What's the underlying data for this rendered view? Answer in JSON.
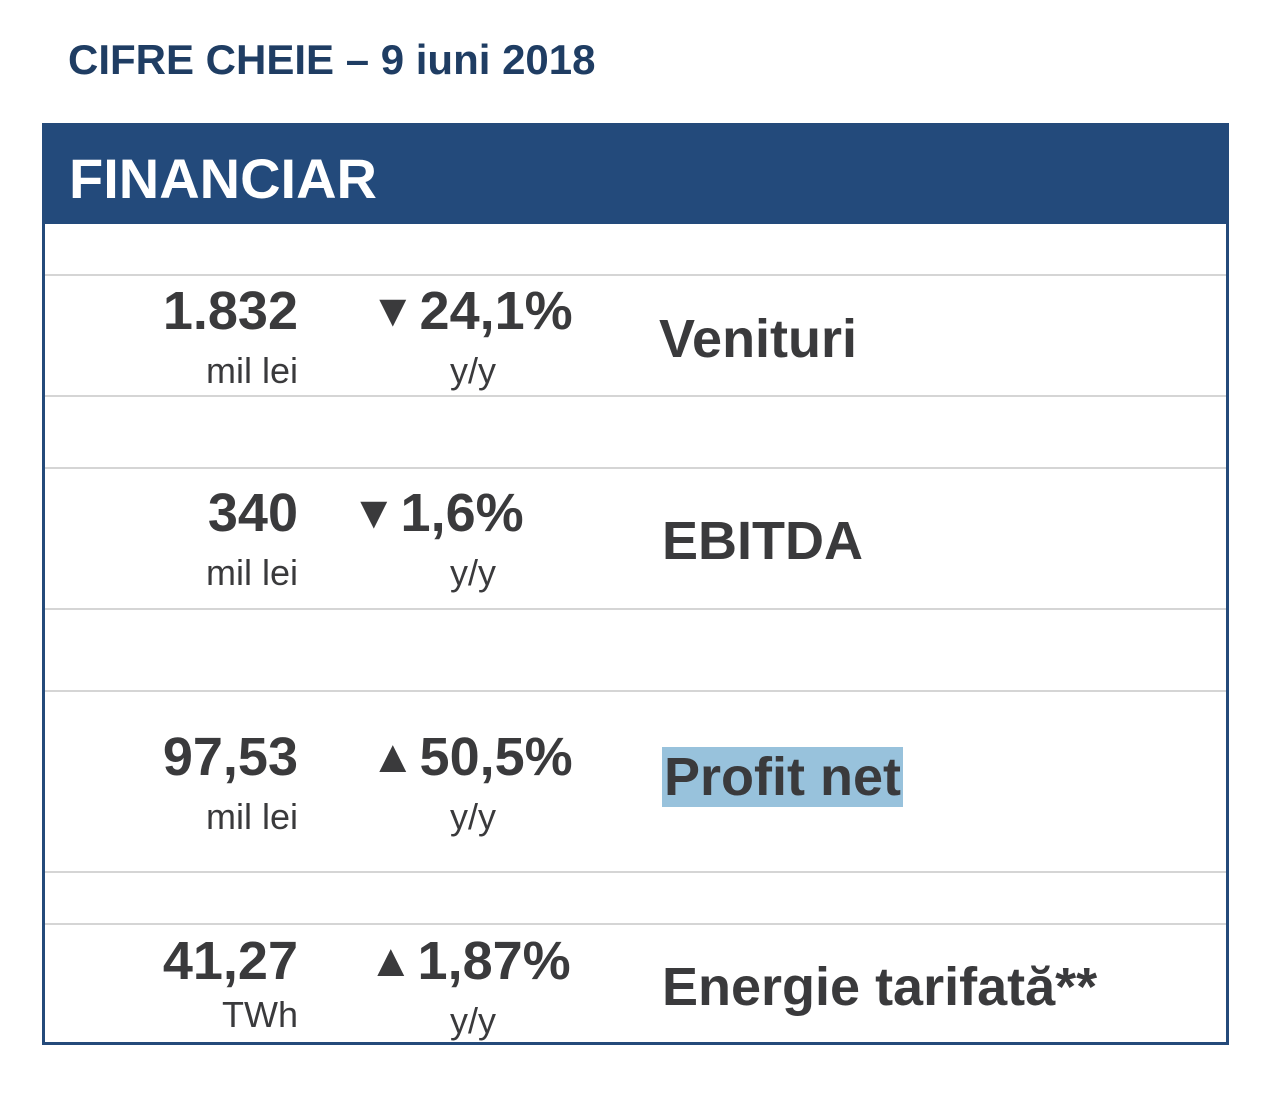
{
  "page_title": "CIFRE CHEIE – 9 iuni 2018",
  "section": {
    "title": "FINANCIAR"
  },
  "metrics": [
    {
      "value": "1.832",
      "unit": "mil lei",
      "direction": "down",
      "arrow": "▼",
      "change": "24,1%",
      "period": "y/y",
      "label": "Venituri",
      "highlighted": false
    },
    {
      "value": "340",
      "unit": "mil lei",
      "direction": "down",
      "arrow": "▼",
      "change": "1,6%",
      "period": "y/y",
      "label": "EBITDA",
      "highlighted": false
    },
    {
      "value": "97,53",
      "unit": "mil lei",
      "direction": "up",
      "arrow": "▲",
      "change": "50,5%",
      "period": "y/y",
      "label": "Profit net",
      "highlighted": true
    },
    {
      "value": "41,27",
      "unit": "TWh",
      "direction": "up",
      "arrow": "▲",
      "change": "1,87%",
      "period": "y/y",
      "label": "Energie tarifată**",
      "highlighted": false
    }
  ],
  "colors": {
    "title_text": "#1f3d63",
    "header_background": "#234a7b",
    "header_text": "#ffffff",
    "body_text": "#3a3a3c",
    "highlight_background": "#98c2dc",
    "rule": "#d5d5d5"
  }
}
